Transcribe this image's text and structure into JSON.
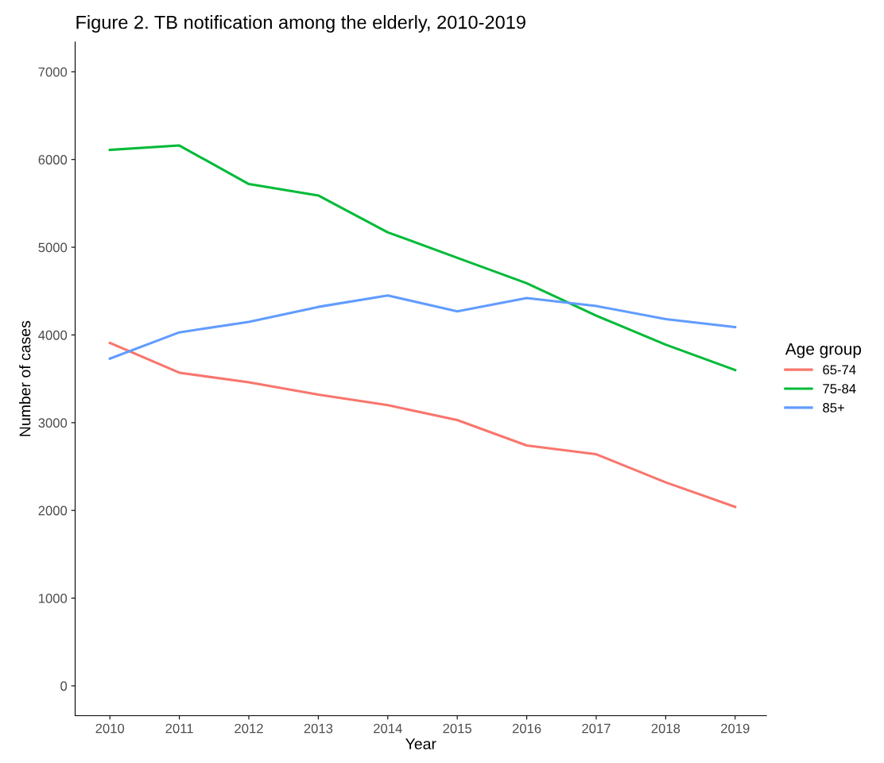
{
  "chart_data": {
    "type": "line",
    "title": "Figure 2. TB notification among the elderly, 2010-2019",
    "xlabel": "Year",
    "ylabel": "Number of cases",
    "legend_title": "Age group",
    "x": [
      2010,
      2011,
      2012,
      2013,
      2014,
      2015,
      2016,
      2017,
      2018,
      2019
    ],
    "series": [
      {
        "name": "65-74",
        "color": "#f8766d",
        "values": [
          3910,
          3570,
          3460,
          3320,
          3200,
          3030,
          2740,
          2640,
          2320,
          2040
        ]
      },
      {
        "name": "75-84",
        "color": "#00ba38",
        "values": [
          6110,
          6160,
          5720,
          5590,
          5170,
          4880,
          4590,
          4220,
          3890,
          3600
        ]
      },
      {
        "name": "85+",
        "color": "#619cff",
        "values": [
          3730,
          4030,
          4150,
          4320,
          4450,
          4270,
          4420,
          4330,
          4180,
          4090
        ]
      }
    ],
    "xlim": [
      2009.5,
      2019.45
    ],
    "ylim": [
      -340,
      7340
    ],
    "xticks": [
      2010,
      2011,
      2012,
      2013,
      2014,
      2015,
      2016,
      2017,
      2018,
      2019
    ],
    "yticks": [
      0,
      1000,
      2000,
      3000,
      4000,
      5000,
      6000,
      7000
    ],
    "grid": false,
    "legend": "right",
    "marker": "none",
    "line_style": "solid"
  }
}
